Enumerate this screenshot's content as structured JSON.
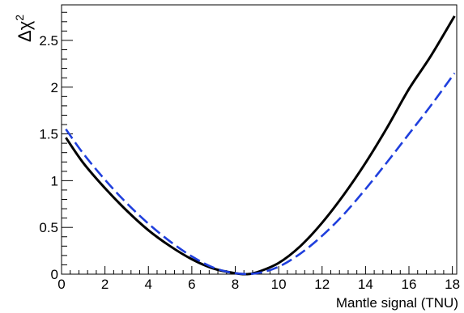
{
  "chart_data": {
    "type": "line",
    "title": "",
    "xlabel": "Mantle signal (TNU)",
    "ylabel": "Δχ²",
    "ylabel_base": "Δχ",
    "ylabel_sup": "2",
    "xlim": [
      0,
      18.2
    ],
    "ylim": [
      0,
      2.88
    ],
    "x_ticks": [
      0,
      2,
      4,
      6,
      8,
      10,
      12,
      14,
      16,
      18
    ],
    "x_tick_labels": [
      "0",
      "2",
      "4",
      "6",
      "8",
      "10",
      "12",
      "14",
      "16",
      "18"
    ],
    "y_ticks": [
      0,
      0.5,
      1,
      1.5,
      2,
      2.5
    ],
    "y_tick_labels": [
      "0",
      "0.5",
      "1",
      "1.5",
      "2",
      "2.5"
    ],
    "grid": false,
    "series": [
      {
        "style": "solid",
        "color": "#000000",
        "x": [
          0.2,
          1,
          2,
          3,
          4,
          5,
          6,
          7,
          8,
          8.5,
          9,
          10,
          11,
          12,
          13,
          14,
          15,
          16,
          17,
          18.1
        ],
        "y": [
          1.46,
          1.19,
          0.92,
          0.68,
          0.47,
          0.3,
          0.16,
          0.06,
          0.01,
          0.0,
          0.02,
          0.12,
          0.3,
          0.55,
          0.85,
          1.19,
          1.57,
          1.98,
          2.33,
          2.76
        ]
      },
      {
        "style": "dashed",
        "color": "#1f3fdd",
        "x": [
          0.2,
          1,
          2,
          3,
          4,
          5,
          6,
          7,
          8,
          9,
          10,
          11,
          12,
          13,
          14,
          15,
          16,
          17,
          18.1
        ],
        "y": [
          1.55,
          1.29,
          1.01,
          0.76,
          0.54,
          0.35,
          0.19,
          0.07,
          0.01,
          0.01,
          0.08,
          0.22,
          0.41,
          0.64,
          0.91,
          1.2,
          1.5,
          1.8,
          2.15
        ]
      }
    ]
  }
}
